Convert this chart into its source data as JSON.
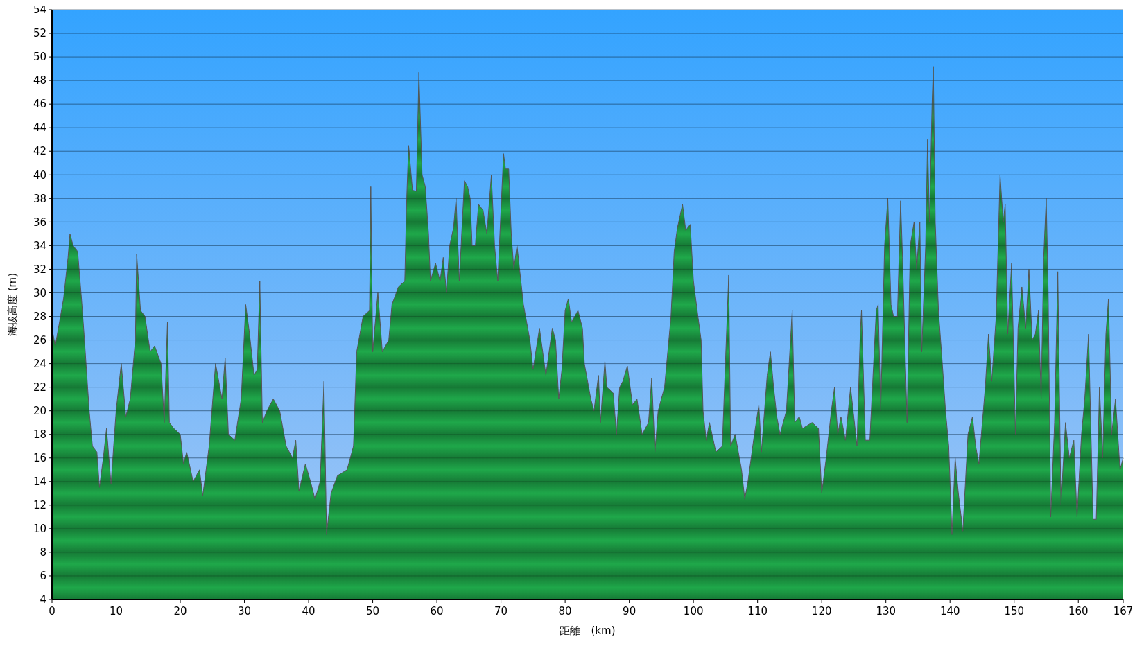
{
  "chart_data": {
    "type": "area",
    "xlabel": "距離　(km)",
    "ylabel": "海拔高度 (m)",
    "color": "#1fa84a",
    "grid": "y",
    "xlim": [
      0,
      167
    ],
    "ylim": [
      4,
      54
    ],
    "xticks": [
      0,
      10,
      20,
      30,
      40,
      50,
      60,
      70,
      80,
      90,
      100,
      110,
      120,
      130,
      140,
      150,
      160,
      167
    ],
    "yticks": [
      4,
      6,
      8,
      10,
      12,
      14,
      16,
      18,
      20,
      22,
      24,
      26,
      28,
      30,
      32,
      34,
      36,
      38,
      40,
      42,
      44,
      46,
      48,
      50,
      52,
      54
    ],
    "x": [
      0,
      0.5,
      1,
      1.8,
      2.5,
      2.8,
      3.3,
      4,
      4.6,
      5,
      5.8,
      6.3,
      7,
      7.4,
      8,
      8.5,
      9.2,
      10,
      10.8,
      11.5,
      12.2,
      13,
      13.2,
      13.8,
      14.5,
      15.3,
      16,
      17,
      17.5,
      18,
      18.3,
      19,
      20,
      20.5,
      21,
      22,
      23,
      23.5,
      24.5,
      25.5,
      26.5,
      27,
      27.5,
      28.5,
      29.5,
      30.2,
      30.8,
      31.5,
      32,
      32.4,
      32.8,
      33.5,
      34.5,
      35.5,
      36.5,
      37.5,
      38,
      38.5,
      39.5,
      40.3,
      41,
      41.8,
      42.4,
      42.8,
      43.5,
      44.5,
      46,
      47,
      47.5,
      48.5,
      49.5,
      49.7,
      50,
      50.8,
      51.5,
      52.5,
      53,
      54,
      55,
      55.3,
      55.6,
      56.2,
      56.8,
      57.2,
      57.7,
      58.2,
      58.7,
      59,
      59.8,
      60.5,
      61,
      61.5,
      62,
      62.6,
      63,
      63.5,
      64.3,
      64.8,
      65.2,
      65.5,
      66,
      66.5,
      67.2,
      67.8,
      68.5,
      69,
      69.5,
      70,
      70.4,
      70.7,
      71.2,
      71.6,
      72,
      72.5,
      73.5,
      74,
      74.5,
      75,
      76,
      77,
      77.5,
      78,
      78.5,
      79,
      79.5,
      80,
      80.5,
      81,
      82,
      82.7,
      83,
      84,
      84.5,
      85.2,
      85.5,
      86.2,
      86.5,
      87.5,
      88,
      88.5,
      89,
      89.7,
      90.5,
      91.2,
      92,
      93,
      93.5,
      94,
      94.5,
      95.5,
      96,
      96.5,
      97,
      97.5,
      98.3,
      98.8,
      99.5,
      100,
      100.7,
      101.2,
      101.5,
      102,
      102.5,
      103.5,
      104.5,
      105.5,
      105.8,
      106.5,
      107.5,
      108,
      108.5,
      109.5,
      110.2,
      110.6,
      111.5,
      112,
      112.5,
      113,
      113.5,
      114.5,
      115.4,
      115.8,
      116.5,
      117,
      118.5,
      119.5,
      120,
      120.7,
      121.5,
      122,
      122.5,
      123,
      123.7,
      124.5,
      125.5,
      126,
      126.2,
      126.8,
      127.5,
      128.5,
      128.8,
      129.2,
      129.8,
      130.3,
      130.8,
      131.2,
      131.8,
      132.3,
      132.6,
      133.3,
      133.8,
      134.4,
      134.8,
      135.3,
      135.6,
      136.2,
      136.5,
      136.8,
      137.2,
      137.4,
      137.7,
      138.2,
      138.8,
      139.3,
      139.8,
      140.3,
      140.8,
      141.3,
      142,
      142.8,
      143.5,
      144,
      144.5,
      145.5,
      146,
      146.5,
      147.2,
      147.8,
      148.3,
      148.6,
      149,
      149.6,
      150.2,
      150.6,
      151.2,
      151.8,
      152.3,
      152.8,
      153.3,
      153.8,
      154.2,
      154.6,
      155,
      155.3,
      155.7,
      156.3,
      156.8,
      157.3,
      158,
      158.6,
      159.3,
      159.8,
      160.5,
      161,
      161.6,
      162.3,
      162.8,
      163.3,
      163.8,
      164.3,
      164.7,
      165.2,
      165.8,
      166.5,
      167
    ],
    "values": [
      27,
      25.5,
      27,
      29.5,
      33,
      35,
      34,
      33.5,
      29.5,
      26.5,
      20,
      17,
      16.5,
      13.5,
      16,
      18.5,
      13.8,
      20,
      24,
      19.5,
      21,
      26,
      33.3,
      28.5,
      28,
      25,
      25.5,
      24,
      19,
      27.5,
      19,
      18.5,
      18,
      15.5,
      16.5,
      14,
      15,
      12.8,
      17,
      24,
      21,
      24.5,
      18,
      17.5,
      21,
      29,
      26.5,
      23,
      23.5,
      31,
      19,
      20,
      21,
      20,
      17,
      16,
      17.5,
      13.2,
      15.5,
      14,
      12.5,
      14,
      22.5,
      9.5,
      13,
      14.5,
      15,
      17,
      25,
      28,
      28.5,
      39,
      25,
      30,
      25,
      26,
      29,
      30.5,
      31,
      38,
      42.5,
      38.7,
      38.6,
      48.7,
      40,
      39,
      35,
      31,
      32.5,
      31,
      33,
      30,
      34,
      35.5,
      38,
      31,
      39.5,
      39,
      38,
      34,
      34,
      37.5,
      37,
      35,
      40,
      34,
      31,
      37,
      41.8,
      40.5,
      40.5,
      35,
      32,
      34,
      29,
      27.5,
      26,
      23.5,
      27,
      23,
      25,
      27,
      26,
      21,
      23.5,
      28.5,
      29.5,
      27.5,
      28.5,
      27,
      24,
      21,
      20,
      23,
      19,
      24.2,
      22,
      21.5,
      18,
      22,
      22.5,
      23.8,
      20.5,
      21,
      18,
      19,
      22.8,
      16.5,
      20,
      22,
      25,
      28,
      33.5,
      35.5,
      37.5,
      35.3,
      35.8,
      31,
      28,
      26,
      20,
      17.5,
      19,
      16.5,
      17,
      31.5,
      17,
      18,
      15,
      12.5,
      14,
      18,
      20.5,
      16.5,
      23,
      25,
      22,
      19.5,
      18,
      20,
      28.5,
      19,
      19.5,
      18.5,
      19,
      18.5,
      13,
      16,
      20,
      22,
      18,
      19.5,
      17.5,
      22,
      17,
      26.5,
      28.5,
      17.5,
      17.5,
      28.5,
      29,
      20,
      34,
      38,
      29,
      28,
      28,
      37.8,
      33,
      19,
      34,
      36,
      32,
      36,
      25,
      34,
      43,
      36,
      46,
      49.2,
      36,
      28.5,
      24,
      20,
      17,
      9.5,
      16,
      13,
      9.8,
      18,
      19.5,
      17,
      15.5,
      22,
      26.5,
      22.5,
      28,
      40,
      36,
      37.5,
      26.5,
      32.5,
      18,
      27,
      30.5,
      27,
      32,
      26,
      26.5,
      28.5,
      21,
      33,
      38,
      30,
      11,
      19,
      31.8,
      12,
      19,
      16,
      17.5,
      11,
      18,
      21,
      26.5,
      10.8,
      10.8,
      22,
      16,
      26.5,
      29.5,
      18,
      21,
      15,
      16
    ]
  }
}
